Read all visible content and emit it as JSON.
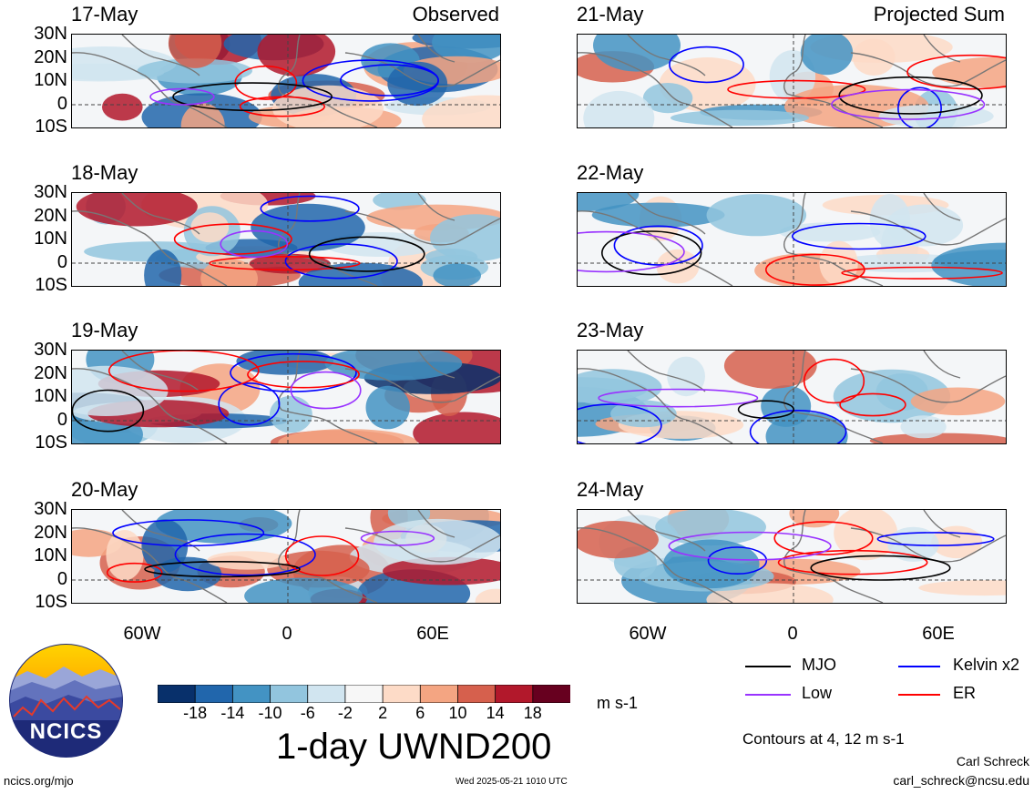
{
  "panels_left": [
    {
      "date": "17-May",
      "tag": "Observed"
    },
    {
      "date": "18-May",
      "tag": ""
    },
    {
      "date": "19-May",
      "tag": ""
    },
    {
      "date": "20-May",
      "tag": ""
    }
  ],
  "panels_right": [
    {
      "date": "21-May",
      "tag": "Projected Sum"
    },
    {
      "date": "22-May",
      "tag": ""
    },
    {
      "date": "23-May",
      "tag": ""
    },
    {
      "date": "24-May",
      "tag": ""
    }
  ],
  "lat_labels": [
    "30N",
    "20N",
    "10N",
    "0",
    "10S"
  ],
  "lon_labels": [
    "60W",
    "0",
    "60E"
  ],
  "colorbar": {
    "labels": [
      "-18",
      "-14",
      "-10",
      "-6",
      "-2",
      "2",
      "6",
      "10",
      "14",
      "18"
    ],
    "colors": [
      "#08306b",
      "#2166ac",
      "#4393c3",
      "#92c5de",
      "#d1e5f0",
      "#f7f7f7",
      "#fddbc7",
      "#f4a582",
      "#d6604d",
      "#b2182b",
      "#67001f"
    ],
    "unit": "m s-1"
  },
  "legend": [
    {
      "label": "MJO",
      "color": "#000000"
    },
    {
      "label": "Kelvin x2",
      "color": "#0000ff"
    },
    {
      "label": "Low",
      "color": "#9933ff"
    },
    {
      "label": "ER",
      "color": "#ff0000"
    }
  ],
  "contours_note": "Contours at 4, 12 m s-1",
  "title": "1-day UWND200",
  "footer": {
    "site": "ncics.org/mjo",
    "timestamp": "Wed 2025-05-21 1010 UTC",
    "author": "Carl Schreck",
    "email": "carl_schreck@ncsu.edu"
  },
  "logo_text": "NCICS"
}
